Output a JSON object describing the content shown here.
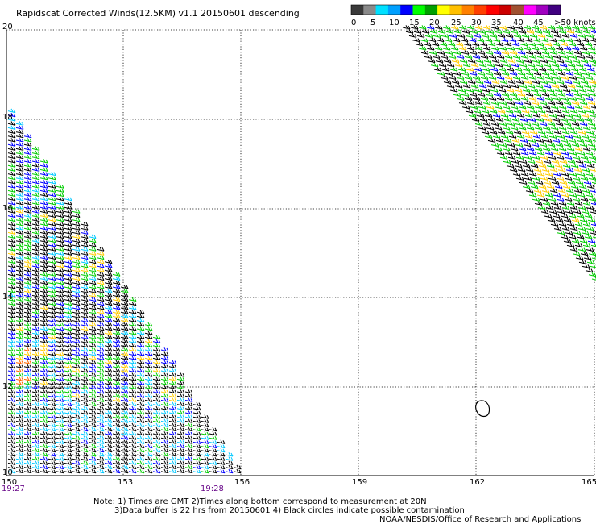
{
  "title": "Rapidscat Corrected Winds(12.5KM) v1.1 20150601 descending",
  "legend": {
    "labels": [
      "0",
      "5",
      "10",
      "15",
      "20",
      "25",
      "30",
      "35",
      "40",
      "45",
      ">50 knots"
    ],
    "colors": [
      "#3a3a3a",
      "#8a8a8a",
      "#00e0ff",
      "#00a0ff",
      "#0000ff",
      "#00ff00",
      "#00a000",
      "#ffff00",
      "#ffc000",
      "#ff8000",
      "#ff4000",
      "#ff0000",
      "#cc0000",
      "#a05030",
      "#ff00ff",
      "#a000c0",
      "#400080"
    ]
  },
  "map": {
    "lon_ticks": [
      "150",
      "153",
      "156",
      "159",
      "162",
      "165"
    ],
    "lat_ticks": [
      "20",
      "18",
      "16",
      "14",
      "12",
      "10"
    ],
    "time_labels": [
      "19:27",
      "19:28"
    ],
    "swath_colors": {
      "calm": "#000000",
      "light": "#00c8ff",
      "moderate": "#0000ff",
      "fresh": "#00cc00",
      "strong": "#ffcc00",
      "gale": "#ff6600",
      "storm": "#cc0000"
    },
    "contamination_symbol": "black-circle-icon"
  },
  "notes": {
    "line1": "Note: 1) Times are GMT 2)Times along bottom correspond to measurement at 20N",
    "line2": "3)Data buffer is 22 hrs from 20150601 4) Black circles indicate possible contamination",
    "credit": "NOAA/NESDIS/Office of Research and Applications"
  }
}
